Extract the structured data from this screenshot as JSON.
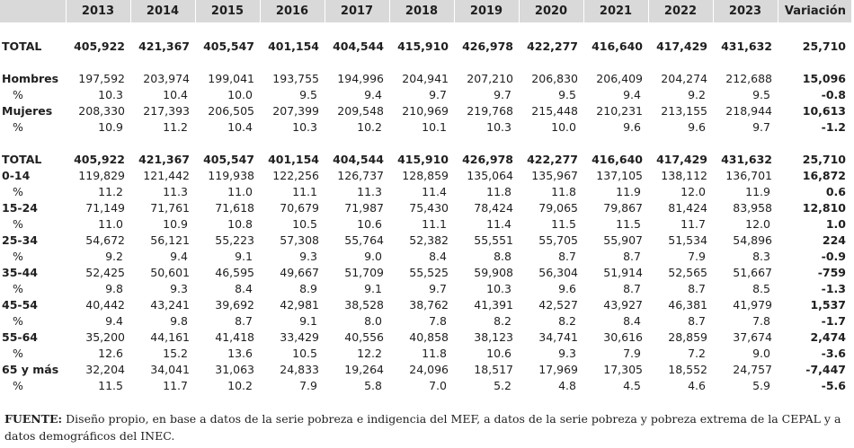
{
  "header": {
    "years": [
      "2013",
      "2014",
      "2015",
      "2016",
      "2017",
      "2018",
      "2019",
      "2020",
      "2021",
      "2022",
      "2023"
    ],
    "variation": "Variación"
  },
  "rows": [
    {
      "type": "spacer"
    },
    {
      "type": "bold",
      "label": "TOTAL",
      "values": [
        "405,922",
        "421,367",
        "405,547",
        "401,154",
        "404,544",
        "415,910",
        "426,978",
        "422,277",
        "416,640",
        "417,429",
        "431,632"
      ],
      "var": "25,710"
    },
    {
      "type": "spacer"
    },
    {
      "type": "group",
      "label": "Hombres",
      "values": [
        "197,592",
        "203,974",
        "199,041",
        "193,755",
        "194,996",
        "204,941",
        "207,210",
        "206,830",
        "206,409",
        "204,274",
        "212,688"
      ],
      "var": "15,096"
    },
    {
      "type": "pct",
      "label": "%",
      "values": [
        "10.3",
        "10.4",
        "10.0",
        "9.5",
        "9.4",
        "9.7",
        "9.7",
        "9.5",
        "9.4",
        "9.2",
        "9.5"
      ],
      "var": "-0.8"
    },
    {
      "type": "group",
      "label": "Mujeres",
      "values": [
        "208,330",
        "217,393",
        "206,505",
        "207,399",
        "209,548",
        "210,969",
        "219,768",
        "215,448",
        "210,231",
        "213,155",
        "218,944"
      ],
      "var": "10,613"
    },
    {
      "type": "pct",
      "label": "%",
      "values": [
        "10.9",
        "11.2",
        "10.4",
        "10.3",
        "10.2",
        "10.1",
        "10.3",
        "10.0",
        "9.6",
        "9.6",
        "9.7"
      ],
      "var": "-1.2"
    },
    {
      "type": "spacer"
    },
    {
      "type": "bold",
      "label": "TOTAL",
      "values": [
        "405,922",
        "421,367",
        "405,547",
        "401,154",
        "404,544",
        "415,910",
        "426,978",
        "422,277",
        "416,640",
        "417,429",
        "431,632"
      ],
      "var": "25,710"
    },
    {
      "type": "group",
      "label": "0-14",
      "values": [
        "119,829",
        "121,442",
        "119,938",
        "122,256",
        "126,737",
        "128,859",
        "135,064",
        "135,967",
        "137,105",
        "138,112",
        "136,701"
      ],
      "var": "16,872"
    },
    {
      "type": "pct",
      "label": "%",
      "values": [
        "11.2",
        "11.3",
        "11.0",
        "11.1",
        "11.3",
        "11.4",
        "11.8",
        "11.8",
        "11.9",
        "12.0",
        "11.9"
      ],
      "var": "0.6"
    },
    {
      "type": "group",
      "label": "15-24",
      "values": [
        "71,149",
        "71,761",
        "71,618",
        "70,679",
        "71,987",
        "75,430",
        "78,424",
        "79,065",
        "79,867",
        "81,424",
        "83,958"
      ],
      "var": "12,810"
    },
    {
      "type": "pct",
      "label": "%",
      "values": [
        "11.0",
        "10.9",
        "10.8",
        "10.5",
        "10.6",
        "11.1",
        "11.4",
        "11.5",
        "11.5",
        "11.7",
        "12.0"
      ],
      "var": "1.0"
    },
    {
      "type": "group",
      "label": "25-34",
      "values": [
        "54,672",
        "56,121",
        "55,223",
        "57,308",
        "55,764",
        "52,382",
        "55,551",
        "55,705",
        "55,907",
        "51,534",
        "54,896"
      ],
      "var": "224"
    },
    {
      "type": "pct",
      "label": "%",
      "values": [
        "9.2",
        "9.4",
        "9.1",
        "9.3",
        "9.0",
        "8.4",
        "8.8",
        "8.7",
        "8.7",
        "7.9",
        "8.3"
      ],
      "var": "-0.9"
    },
    {
      "type": "group",
      "label": "35-44",
      "values": [
        "52,425",
        "50,601",
        "46,595",
        "49,667",
        "51,709",
        "55,525",
        "59,908",
        "56,304",
        "51,914",
        "52,565",
        "51,667"
      ],
      "var": "-759"
    },
    {
      "type": "pct",
      "label": "%",
      "values": [
        "9.8",
        "9.3",
        "8.4",
        "8.9",
        "9.1",
        "9.7",
        "10.3",
        "9.6",
        "8.7",
        "8.7",
        "8.5"
      ],
      "var": "-1.3"
    },
    {
      "type": "group",
      "label": "45-54",
      "values": [
        "40,442",
        "43,241",
        "39,692",
        "42,981",
        "38,528",
        "38,762",
        "41,391",
        "42,527",
        "43,927",
        "46,381",
        "41,979"
      ],
      "var": "1,537"
    },
    {
      "type": "pct",
      "label": "%",
      "values": [
        "9.4",
        "9.8",
        "8.7",
        "9.1",
        "8.0",
        "7.8",
        "8.2",
        "8.2",
        "8.4",
        "8.7",
        "7.8"
      ],
      "var": "-1.7"
    },
    {
      "type": "group",
      "label": "55-64",
      "values": [
        "35,200",
        "44,161",
        "41,418",
        "33,429",
        "40,556",
        "40,858",
        "38,123",
        "34,741",
        "30,616",
        "28,859",
        "37,674"
      ],
      "var": "2,474"
    },
    {
      "type": "pct",
      "label": "%",
      "values": [
        "12.6",
        "15.2",
        "13.6",
        "10.5",
        "12.2",
        "11.8",
        "10.6",
        "9.3",
        "7.9",
        "7.2",
        "9.0"
      ],
      "var": "-3.6"
    },
    {
      "type": "group",
      "label": "65 y más",
      "values": [
        "32,204",
        "34,041",
        "31,063",
        "24,833",
        "19,264",
        "24,096",
        "18,517",
        "17,969",
        "17,305",
        "18,552",
        "24,757"
      ],
      "var": "-7,447"
    },
    {
      "type": "pct",
      "label": "%",
      "values": [
        "11.5",
        "11.7",
        "10.2",
        "7.9",
        "5.8",
        "7.0",
        "5.2",
        "4.8",
        "4.5",
        "4.6",
        "5.9"
      ],
      "var": "-5.6"
    }
  ],
  "source": {
    "label": "FUENTE:",
    "text": " Diseño propio, en base a datos de la serie pobreza e indigencia del MEF, a datos de la serie pobreza y pobreza extrema de la CEPAL y a datos demográficos del INEC."
  }
}
